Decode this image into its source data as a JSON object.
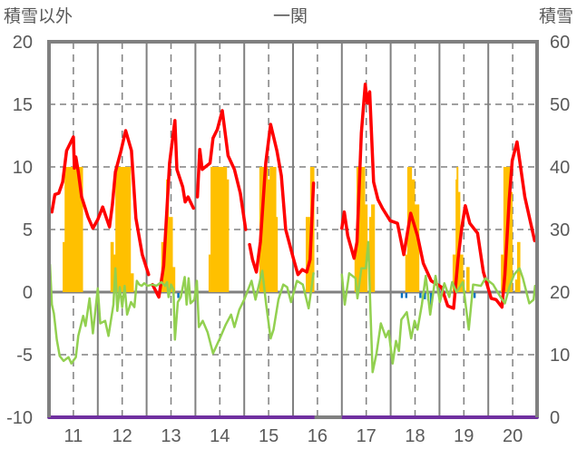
{
  "chart_data": {
    "type": "line",
    "title": "一関",
    "ylabel_left": "積雪以外",
    "ylabel_right": "積雪",
    "ylim_left": [
      -10,
      20
    ],
    "ylim_right": [
      0,
      60
    ],
    "yticks_left": [
      "20",
      "15",
      "10",
      "5",
      "0",
      "-5",
      "-10"
    ],
    "yticks_right": [
      "60",
      "50",
      "40",
      "30",
      "20",
      "10",
      "0"
    ],
    "xlim": [
      10.5,
      20.5
    ],
    "x_tick_labels": [
      "11",
      "12",
      "13",
      "14",
      "15",
      "16",
      "17",
      "18",
      "19",
      "20"
    ],
    "grid": true,
    "colors": {
      "red": "#FF0000",
      "green": "#92D050",
      "bars": "#FFC000",
      "blue": "#0070C0",
      "purple": "#7030A0",
      "axis": "#808080"
    },
    "series": [
      {
        "name": "red-series",
        "axis": "left",
        "segments": [
          [
            [
              10.5,
              6.5
            ],
            [
              10.56,
              6.4
            ],
            [
              10.62,
              7.8
            ],
            [
              10.7,
              7.9
            ],
            [
              10.78,
              8.8
            ],
            [
              10.86,
              11.3
            ],
            [
              10.95,
              12.0
            ],
            [
              11.0,
              12.4
            ],
            [
              11.02,
              9.9
            ],
            [
              11.05,
              10.8
            ],
            [
              11.1,
              9.6
            ],
            [
              11.17,
              7.6
            ],
            [
              11.3,
              6.0
            ],
            [
              11.4,
              5.1
            ],
            [
              11.5,
              5.8
            ],
            [
              11.6,
              6.8
            ],
            [
              11.67,
              6.0
            ],
            [
              11.74,
              5.2
            ],
            [
              11.8,
              7.0
            ],
            [
              11.86,
              9.6
            ],
            [
              11.97,
              11.2
            ],
            [
              12.07,
              12.9
            ],
            [
              12.19,
              11.3
            ],
            [
              12.28,
              5.9
            ],
            [
              12.41,
              3.0
            ],
            [
              12.54,
              1.4
            ]
          ],
          [
            [
              12.62,
              0.6
            ],
            [
              12.75,
              -0.4
            ],
            [
              12.85,
              2.1
            ],
            [
              12.97,
              10.3
            ],
            [
              13.08,
              13.7
            ],
            [
              13.12,
              9.8
            ],
            [
              13.24,
              8.4
            ],
            [
              13.29,
              7.2
            ],
            [
              13.35,
              7.6
            ],
            [
              13.46,
              6.7
            ]
          ],
          [
            [
              13.54,
              7.6
            ],
            [
              13.59,
              11.4
            ],
            [
              13.64,
              9.8
            ],
            [
              13.8,
              10.3
            ],
            [
              13.86,
              12.3
            ],
            [
              13.95,
              13.0
            ],
            [
              14.05,
              14.5
            ],
            [
              14.17,
              10.9
            ],
            [
              14.3,
              9.8
            ],
            [
              14.42,
              7.9
            ],
            [
              14.53,
              5.0
            ]
          ],
          [
            [
              14.61,
              3.8
            ],
            [
              14.67,
              2.6
            ],
            [
              14.75,
              1.6
            ],
            [
              14.83,
              4.0
            ],
            [
              14.94,
              10.3
            ],
            [
              15.04,
              13.4
            ],
            [
              15.17,
              11.3
            ],
            [
              15.26,
              9.3
            ],
            [
              15.35,
              5.0
            ],
            [
              15.5,
              2.8
            ],
            [
              15.6,
              1.4
            ],
            [
              15.69,
              1.8
            ],
            [
              15.78,
              1.6
            ],
            [
              15.85,
              2.6
            ],
            [
              15.92,
              8.7
            ]
          ],
          [
            [
              16.5,
              5.1
            ],
            [
              16.55,
              6.4
            ],
            [
              16.62,
              4.5
            ],
            [
              16.75,
              2.7
            ],
            [
              16.81,
              4.0
            ],
            [
              16.9,
              12.7
            ],
            [
              16.98,
              16.6
            ],
            [
              17.02,
              15.1
            ],
            [
              17.07,
              16.0
            ],
            [
              17.15,
              8.8
            ],
            [
              17.24,
              7.4
            ],
            [
              17.33,
              6.7
            ],
            [
              17.49,
              5.7
            ],
            [
              17.64,
              5.5
            ],
            [
              17.77,
              3.0
            ],
            [
              17.91,
              6.3
            ],
            [
              18.05,
              4.5
            ],
            [
              18.17,
              2.3
            ],
            [
              18.33,
              0.9
            ],
            [
              18.54,
              0.4
            ],
            [
              18.67,
              -1.1
            ],
            [
              18.79,
              -1.3
            ],
            [
              18.88,
              2.6
            ],
            [
              18.96,
              5.2
            ],
            [
              19.03,
              6.9
            ],
            [
              19.12,
              5.5
            ],
            [
              19.28,
              4.7
            ],
            [
              19.4,
              1.6
            ],
            [
              19.56,
              -0.5
            ],
            [
              19.66,
              -0.6
            ],
            [
              19.78,
              -1.2
            ],
            [
              19.84,
              1.4
            ],
            [
              19.93,
              7.4
            ],
            [
              19.99,
              10.5
            ],
            [
              20.09,
              12.0
            ],
            [
              20.25,
              7.6
            ],
            [
              20.45,
              4.1
            ]
          ]
        ]
      },
      {
        "name": "green-series",
        "axis": "left",
        "segments": [
          [
            [
              10.5,
              1.3
            ],
            [
              10.52,
              2.2
            ],
            [
              10.56,
              -1.0
            ],
            [
              10.6,
              -1.7
            ],
            [
              10.66,
              -3.8
            ],
            [
              10.72,
              -5.1
            ],
            [
              10.8,
              -5.5
            ],
            [
              10.9,
              -5.2
            ],
            [
              10.96,
              -5.7
            ],
            [
              11.05,
              -5.2
            ],
            [
              11.1,
              -3.5
            ],
            [
              11.2,
              -1.9
            ],
            [
              11.25,
              -2.7
            ],
            [
              11.33,
              -0.5
            ],
            [
              11.4,
              -3.3
            ],
            [
              11.5,
              0.3
            ],
            [
              11.55,
              -2.5
            ],
            [
              11.65,
              -2.3
            ],
            [
              11.72,
              -3.5
            ],
            [
              11.82,
              -1.0
            ],
            [
              11.86,
              1.9
            ],
            [
              11.9,
              -1.5
            ],
            [
              11.95,
              0.4
            ],
            [
              12.0,
              -1.2
            ],
            [
              12.05,
              0.5
            ],
            [
              12.1,
              -1.8
            ],
            [
              12.18,
              -0.8
            ],
            [
              12.25,
              -1.2
            ],
            [
              12.3,
              0.9
            ],
            [
              12.35,
              0.6
            ],
            [
              12.4,
              0.5
            ],
            [
              12.45,
              0.7
            ],
            [
              12.52,
              0.5
            ],
            [
              12.62,
              0.6
            ],
            [
              12.7,
              0.5
            ],
            [
              12.8,
              0.8
            ],
            [
              12.88,
              0.5
            ],
            [
              12.92,
              0.8
            ],
            [
              12.95,
              -0.4
            ],
            [
              13.0,
              0.6
            ],
            [
              13.05,
              0.2
            ],
            [
              13.08,
              -3.8
            ],
            [
              13.14,
              -0.8
            ],
            [
              13.2,
              -0.4
            ],
            [
              13.28,
              1.2
            ],
            [
              13.32,
              -1.0
            ],
            [
              13.36,
              1.1
            ],
            [
              13.4,
              -0.9
            ],
            [
              13.48,
              -0.6
            ],
            [
              13.53,
              0.9
            ],
            [
              13.57,
              -2.8
            ],
            [
              13.65,
              -2.3
            ],
            [
              13.75,
              -3.2
            ],
            [
              13.86,
              -4.9
            ],
            [
              14.0,
              -3.7
            ],
            [
              14.12,
              -2.6
            ],
            [
              14.23,
              -1.8
            ],
            [
              14.3,
              -2.8
            ],
            [
              14.4,
              -1.4
            ],
            [
              14.5,
              -0.6
            ],
            [
              14.65,
              0.9
            ],
            [
              14.73,
              -0.6
            ],
            [
              14.87,
              1.7
            ],
            [
              14.95,
              -1.0
            ],
            [
              15.04,
              -3.7
            ],
            [
              15.1,
              -3.0
            ],
            [
              15.2,
              -0.6
            ],
            [
              15.3,
              0.6
            ],
            [
              15.38,
              0.4
            ],
            [
              15.46,
              -0.8
            ],
            [
              15.58,
              0.9
            ],
            [
              15.7,
              0.6
            ],
            [
              15.82,
              -1.3
            ],
            [
              15.92,
              1.5
            ]
          ],
          [
            [
              16.5,
              1.4
            ],
            [
              16.56,
              -1.0
            ],
            [
              16.65,
              1.5
            ],
            [
              16.78,
              1.1
            ],
            [
              16.82,
              -0.5
            ],
            [
              16.9,
              1.9
            ],
            [
              16.99,
              1.9
            ],
            [
              17.04,
              4.0
            ],
            [
              17.09,
              -1.8
            ],
            [
              17.13,
              -6.4
            ],
            [
              17.21,
              -4.9
            ],
            [
              17.3,
              -2.5
            ],
            [
              17.4,
              -3.6
            ],
            [
              17.46,
              -3.1
            ],
            [
              17.54,
              -5.7
            ],
            [
              17.61,
              -3.9
            ],
            [
              17.67,
              -4.7
            ],
            [
              17.72,
              -2.2
            ],
            [
              17.83,
              -1.6
            ],
            [
              17.92,
              -3.7
            ],
            [
              17.99,
              -2.3
            ],
            [
              18.05,
              -3.0
            ],
            [
              18.14,
              -1.0
            ],
            [
              18.22,
              1.3
            ],
            [
              18.31,
              -1.8
            ],
            [
              18.42,
              1.3
            ],
            [
              18.51,
              -0.8
            ],
            [
              18.6,
              0.7
            ],
            [
              18.7,
              -0.4
            ],
            [
              18.76,
              0.8
            ],
            [
              18.85,
              0.0
            ],
            [
              18.98,
              0.8
            ],
            [
              19.1,
              -3.0
            ],
            [
              19.19,
              0.6
            ],
            [
              19.35,
              0.5
            ],
            [
              19.44,
              1.1
            ],
            [
              19.6,
              0.6
            ],
            [
              19.75,
              -0.4
            ],
            [
              19.84,
              -0.9
            ],
            [
              19.94,
              0.5
            ],
            [
              20.03,
              1.4
            ],
            [
              20.14,
              1.9
            ],
            [
              20.21,
              1.1
            ],
            [
              20.34,
              -0.9
            ],
            [
              20.43,
              -0.6
            ],
            [
              20.46,
              0.5
            ]
          ]
        ]
      },
      {
        "name": "purple-series",
        "axis": "right",
        "segments": [
          [
            [
              10.5,
              0
            ],
            [
              15.94,
              0
            ]
          ],
          [
            [
              16.5,
              0
            ],
            [
              20.5,
              0
            ]
          ]
        ]
      }
    ],
    "bars": {
      "name": "snow-bars",
      "axis": "right",
      "base": 20,
      "items": [
        [
          10.78,
          10.82,
          28
        ],
        [
          10.82,
          11.19,
          40
        ],
        [
          11.76,
          11.82,
          28
        ],
        [
          11.82,
          11.86,
          26
        ],
        [
          11.86,
          12.17,
          40
        ],
        [
          12.17,
          12.23,
          23
        ],
        [
          12.8,
          12.9,
          28
        ],
        [
          12.9,
          12.95,
          38
        ],
        [
          12.95,
          13.03,
          32
        ],
        [
          13.03,
          13.08,
          24
        ],
        [
          13.77,
          13.81,
          26
        ],
        [
          13.81,
          14.14,
          40
        ],
        [
          14.14,
          14.18,
          38
        ],
        [
          14.81,
          14.98,
          40
        ],
        [
          14.98,
          15.02,
          38
        ],
        [
          15.02,
          15.15,
          40
        ],
        [
          15.15,
          15.18,
          32
        ],
        [
          15.76,
          15.85,
          32
        ],
        [
          15.85,
          15.93,
          40
        ],
        [
          16.76,
          16.8,
          26
        ],
        [
          16.8,
          16.97,
          40
        ],
        [
          16.97,
          17.02,
          34
        ],
        [
          17.06,
          17.1,
          32
        ],
        [
          17.1,
          17.17,
          34
        ],
        [
          17.8,
          17.84,
          26
        ],
        [
          17.84,
          17.93,
          40
        ],
        [
          17.93,
          17.99,
          38
        ],
        [
          17.99,
          18.08,
          34
        ],
        [
          18.77,
          18.83,
          26
        ],
        [
          18.83,
          18.85,
          38
        ],
        [
          18.85,
          18.88,
          40
        ],
        [
          18.88,
          18.92,
          36
        ],
        [
          18.92,
          18.98,
          26
        ],
        [
          18.98,
          19.01,
          22
        ],
        [
          19.05,
          19.11,
          24
        ],
        [
          19.76,
          19.81,
          26
        ],
        [
          19.81,
          19.94,
          40
        ],
        [
          19.94,
          19.99,
          36
        ],
        [
          20.05,
          20.09,
          22
        ],
        [
          20.09,
          20.15,
          28
        ]
      ]
    },
    "blue_ticks": {
      "name": "blue-series",
      "axis": "left",
      "items": [
        [
          13.15,
          -0.4
        ],
        [
          17.73,
          -0.4
        ],
        [
          17.82,
          -0.4
        ],
        [
          18.11,
          -0.4
        ],
        [
          18.2,
          -0.5
        ],
        [
          18.27,
          -0.6
        ],
        [
          18.33,
          -1.1
        ],
        [
          19.22,
          -0.4
        ]
      ]
    }
  }
}
